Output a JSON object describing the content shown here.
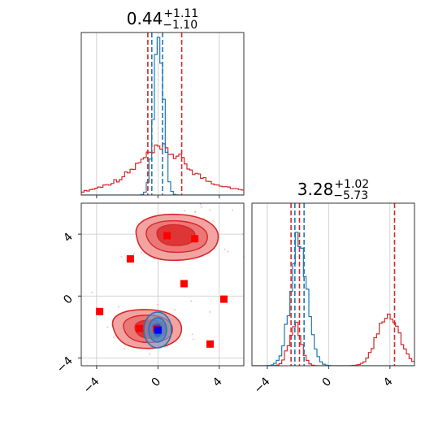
{
  "chart_data": {
    "type": "corner",
    "grid": true,
    "titles": [
      {
        "main": "0.44",
        "sup": "+1.11",
        "sub": "−1.10"
      },
      {
        "main": "3.28",
        "sup": "+1.02",
        "sub": "−5.73"
      }
    ],
    "ticks": [
      {
        "value": -4,
        "label": "−4"
      },
      {
        "value": 0,
        "label": "0"
      },
      {
        "value": 4,
        "label": "4"
      }
    ],
    "xlim": [
      -5,
      5.6
    ],
    "ylim": [
      -4.5,
      6
    ],
    "colors": {
      "red": "#d62728",
      "blue": "#1f77b4",
      "marker": "#ff0000",
      "center": "#0000ff"
    },
    "hist_x": {
      "red_quantile_lines": [
        -0.66,
        1.55
      ],
      "blue_quantile_lines": [
        -0.4,
        0.3
      ]
    },
    "hist_y": {
      "red_quantile_lines": [
        -2.45,
        -1.9,
        4.3
      ],
      "blue_quantile_lines": [
        -2.2,
        -1.6
      ]
    },
    "markers": [
      {
        "x": 0.6,
        "y": 3.9
      },
      {
        "x": 2.4,
        "y": 3.7
      },
      {
        "x": -1.8,
        "y": 2.4
      },
      {
        "x": 1.7,
        "y": 0.8
      },
      {
        "x": 4.3,
        "y": -0.2
      },
      {
        "x": -3.8,
        "y": -1.0
      },
      {
        "x": 3.4,
        "y": -3.1
      },
      {
        "x": -1.2,
        "y": -2.1
      },
      {
        "x": -0.1,
        "y": -2.1
      }
    ],
    "center_marker": {
      "x": 0.0,
      "y": -2.2
    }
  }
}
